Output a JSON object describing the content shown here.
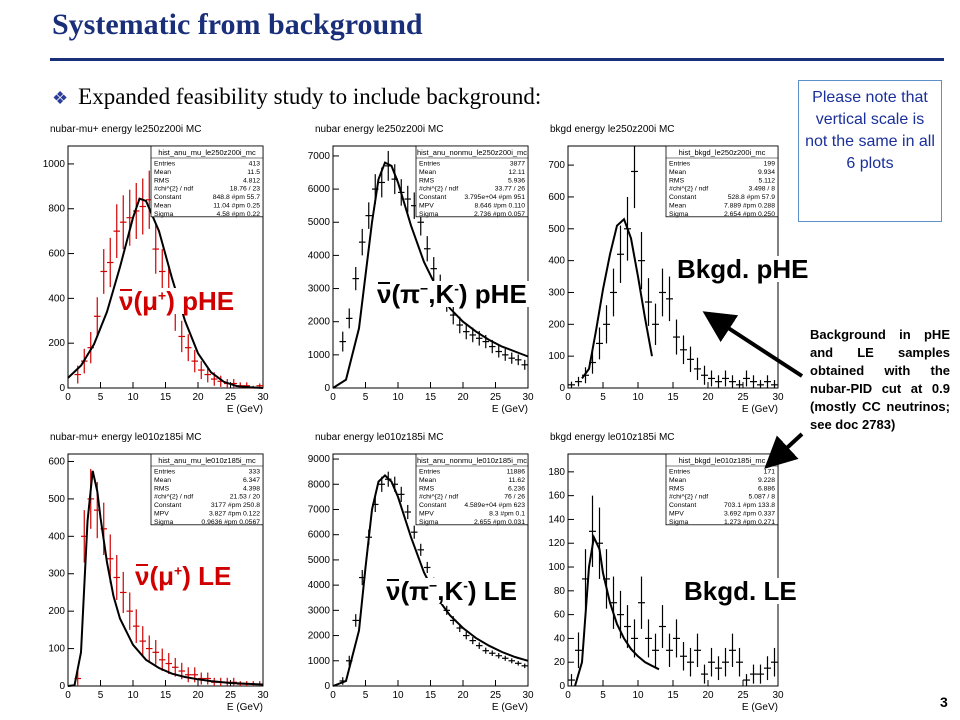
{
  "title": "Systematic from background",
  "bullet": "Expanded feasibility study to include background:",
  "note": "Please note that vertical scale is not the same in all 6 plots",
  "side_text": "Background in pHE and LE samples obtained with the nubar-PID cut at 0.9 (mostly CC neutrinos; see doc 2783)",
  "page_number": "3",
  "overlays": {
    "a": "pHE",
    "b": "pHE",
    "c": "Bkgd. pHE",
    "d": "LE",
    "e": "LE",
    "f": "Bkgd. LE"
  },
  "colors": {
    "title": "#1a2f7a",
    "highlight": "#d00000",
    "note_border": "#5d8fc8",
    "note_text": "#1a2f9a"
  },
  "chart_data": [
    {
      "type": "scatter",
      "title": "nubar-mu+ energy le250z200i MC",
      "xlabel": "E (GeV)",
      "xlim": [
        0,
        30
      ],
      "ylim": [
        0,
        1080
      ],
      "xticks": [
        0,
        5,
        10,
        15,
        20,
        25,
        30
      ],
      "yticks": [
        0,
        200,
        400,
        600,
        800,
        1000
      ],
      "point_color": "#d00000",
      "stats": {
        "name": "hist_anu_mu_le250z200i_mc",
        "rows": [
          [
            "Entries",
            "413"
          ],
          [
            "Mean",
            "11.5"
          ],
          [
            "RMS",
            "4.812"
          ],
          [
            "#chi^{2} / ndf",
            "18.76 / 23"
          ],
          [
            "Constant",
            "848.8 #pm 55.7"
          ],
          [
            "Mean",
            "11.04 #pm 0.25"
          ],
          [
            "Sigma",
            "4.58 #pm 0.22"
          ]
        ]
      },
      "x": [
        1.5,
        2.5,
        3.5,
        4.5,
        5.5,
        6.5,
        7.5,
        8.5,
        9.5,
        10.5,
        11.5,
        12.5,
        13.5,
        14.5,
        15.5,
        16.5,
        17.5,
        18.5,
        19.5,
        20.5,
        21.5,
        22.5,
        23.5,
        24.5,
        25.5,
        26.5,
        27.5,
        28.5,
        29.5
      ],
      "y": [
        60,
        120,
        180,
        320,
        520,
        560,
        700,
        740,
        760,
        790,
        810,
        840,
        620,
        520,
        440,
        340,
        230,
        180,
        120,
        80,
        60,
        40,
        30,
        20,
        20,
        10,
        10,
        0,
        10
      ],
      "errors": [
        40,
        55,
        70,
        85,
        100,
        110,
        120,
        120,
        125,
        125,
        125,
        130,
        110,
        100,
        95,
        85,
        70,
        60,
        50,
        40,
        35,
        30,
        25,
        20,
        20,
        15,
        15,
        10,
        10
      ],
      "fit_x": [
        0,
        2,
        4,
        6,
        8,
        10,
        11,
        12,
        14,
        16,
        18,
        20,
        22,
        24,
        26,
        28,
        30
      ],
      "fit_y": [
        45,
        100,
        195,
        340,
        540,
        760,
        845,
        835,
        700,
        490,
        300,
        155,
        70,
        27,
        8,
        3,
        0
      ]
    },
    {
      "type": "scatter",
      "title": "nubar energy le250z200i MC",
      "xlabel": "E (GeV)",
      "xlim": [
        0,
        30
      ],
      "ylim": [
        0,
        7300
      ],
      "xticks": [
        0,
        5,
        10,
        15,
        20,
        25,
        30
      ],
      "yticks": [
        0,
        1000,
        2000,
        3000,
        4000,
        5000,
        6000,
        7000
      ],
      "point_color": "#000000",
      "stats": {
        "name": "hist_anu_nonmu_le250z200i_mc",
        "rows": [
          [
            "Entries",
            "3877"
          ],
          [
            "Mean",
            "12.11"
          ],
          [
            "RMS",
            "5.936"
          ],
          [
            "#chi^{2} / ndf",
            "33.77 / 26"
          ],
          [
            "Constant",
            "3.795e+04 #pm 951"
          ],
          [
            "MPV",
            "8.646 #pm 0.110"
          ],
          [
            "Sigma",
            "2.736 #pm 0.057"
          ]
        ]
      },
      "x": [
        1.5,
        2.5,
        3.5,
        4.5,
        5.5,
        6.5,
        7.5,
        8.5,
        9.5,
        10.5,
        11.5,
        12.5,
        13.5,
        14.5,
        15.5,
        16.5,
        17.5,
        18.5,
        19.5,
        20.5,
        21.5,
        22.5,
        23.5,
        24.5,
        25.5,
        26.5,
        27.5,
        28.5,
        29.5
      ],
      "y": [
        1400,
        2100,
        3300,
        4400,
        5200,
        6000,
        6200,
        6700,
        6300,
        5900,
        5700,
        5500,
        5000,
        4200,
        3600,
        3100,
        2600,
        2200,
        1900,
        1700,
        1600,
        1500,
        1400,
        1250,
        1100,
        1000,
        900,
        850,
        700
      ],
      "errors": [
        300,
        300,
        350,
        400,
        400,
        450,
        450,
        450,
        450,
        400,
        400,
        400,
        400,
        380,
        350,
        320,
        300,
        280,
        250,
        230,
        220,
        220,
        200,
        200,
        180,
        180,
        170,
        160,
        150
      ],
      "fit_x": [
        0,
        2,
        4,
        6,
        7,
        8,
        9,
        10,
        12,
        14,
        16,
        18,
        20,
        22,
        24,
        26,
        28,
        30
      ],
      "fit_y": [
        0,
        250,
        1800,
        5000,
        6300,
        6800,
        6700,
        6200,
        4900,
        3800,
        3000,
        2400,
        2000,
        1700,
        1450,
        1250,
        1100,
        950
      ]
    },
    {
      "type": "scatter",
      "title": "bkgd energy le250z200i MC",
      "xlabel": "E (GeV)",
      "xlim": [
        0,
        30
      ],
      "ylim": [
        0,
        760
      ],
      "xticks": [
        0,
        5,
        10,
        15,
        20,
        25,
        30
      ],
      "yticks": [
        0,
        100,
        200,
        300,
        400,
        500,
        600,
        700
      ],
      "point_color": "#000000",
      "stats": {
        "name": "hist_bkgd_le250z200i_mc",
        "rows": [
          [
            "Entries",
            "199"
          ],
          [
            "Mean",
            "9.934"
          ],
          [
            "RMS",
            "5.112"
          ],
          [
            "#chi^{2} / ndf",
            "3.498 / 8"
          ],
          [
            "Constant",
            "528.8 #pm 57.9"
          ],
          [
            "Mean",
            "7.889 #pm 0.288"
          ],
          [
            "Sigma",
            "2.654 #pm 0.250"
          ]
        ]
      },
      "x": [
        0.5,
        1.5,
        2.5,
        3.5,
        4.5,
        5.5,
        6.5,
        7.5,
        8.5,
        9.5,
        10.5,
        11.5,
        12.5,
        13.5,
        14.5,
        15.5,
        16.5,
        17.5,
        18.5,
        19.5,
        20.5,
        21.5,
        22.5,
        23.5,
        24.5,
        25.5,
        26.5,
        27.5,
        28.5,
        29.5
      ],
      "y": [
        10,
        20,
        40,
        80,
        140,
        200,
        300,
        420,
        500,
        680,
        400,
        270,
        200,
        300,
        280,
        160,
        120,
        90,
        60,
        40,
        30,
        20,
        30,
        20,
        10,
        30,
        20,
        10,
        20,
        10
      ],
      "errors": [
        10,
        15,
        25,
        35,
        50,
        60,
        75,
        90,
        100,
        115,
        90,
        75,
        65,
        75,
        70,
        55,
        45,
        40,
        35,
        30,
        25,
        20,
        25,
        20,
        15,
        25,
        20,
        15,
        20,
        15
      ],
      "fit_x": [
        2,
        3,
        4,
        5,
        6,
        7,
        8,
        9,
        10,
        11,
        12
      ],
      "fit_y": [
        30,
        60,
        180,
        310,
        420,
        510,
        530,
        470,
        350,
        220,
        100
      ]
    },
    {
      "type": "scatter",
      "title": "nubar-mu+ energy le010z185i MC",
      "xlabel": "E (GeV)",
      "xlim": [
        0,
        30
      ],
      "ylim": [
        0,
        620
      ],
      "xticks": [
        0,
        5,
        10,
        15,
        20,
        25,
        30
      ],
      "yticks": [
        0,
        100,
        200,
        300,
        400,
        500,
        600
      ],
      "point_color": "#d00000",
      "stats": {
        "name": "hist_anu_mu_le010z185i_mc",
        "rows": [
          [
            "Entries",
            "333"
          ],
          [
            "Mean",
            "6.347"
          ],
          [
            "RMS",
            "4.398"
          ],
          [
            "#chi^{2} / ndf",
            "21.53 / 20"
          ],
          [
            "Constant",
            "3177 #pm 250.8"
          ],
          [
            "MPV",
            "3.827 #pm 0.122"
          ],
          [
            "Sigma",
            "0.9636 #pm 0.0567"
          ]
        ]
      },
      "x": [
        1.5,
        2.5,
        3.5,
        4.5,
        5.5,
        6.5,
        7.5,
        8.5,
        9.5,
        10.5,
        11.5,
        12.5,
        13.5,
        14.5,
        15.5,
        16.5,
        17.5,
        18.5,
        19.5,
        20.5,
        21.5,
        22.5,
        23.5,
        24.5,
        25.5,
        26.5,
        27.5,
        28.5,
        29.5
      ],
      "y": [
        20,
        400,
        500,
        470,
        420,
        340,
        290,
        250,
        200,
        160,
        120,
        100,
        90,
        70,
        60,
        50,
        40,
        30,
        30,
        20,
        20,
        10,
        10,
        10,
        10,
        5,
        5,
        5,
        5
      ],
      "errors": [
        20,
        70,
        80,
        75,
        70,
        65,
        60,
        55,
        50,
        45,
        40,
        35,
        33,
        30,
        28,
        25,
        22,
        20,
        20,
        16,
        16,
        12,
        12,
        12,
        12,
        8,
        8,
        8,
        8
      ],
      "fit_x": [
        0,
        1,
        2,
        3,
        3.8,
        4.5,
        5,
        6,
        7,
        8,
        10,
        12,
        14,
        16,
        18,
        20,
        22,
        25,
        30
      ],
      "fit_y": [
        0,
        2,
        90,
        440,
        575,
        520,
        450,
        330,
        240,
        180,
        110,
        70,
        48,
        33,
        24,
        18,
        13,
        8,
        4
      ]
    },
    {
      "type": "scatter",
      "title": "nubar energy le010z185i MC",
      "xlabel": "E (GeV)",
      "xlim": [
        0,
        30
      ],
      "ylim": [
        0,
        9200
      ],
      "xticks": [
        0,
        5,
        10,
        15,
        20,
        25,
        30
      ],
      "yticks": [
        0,
        1000,
        2000,
        3000,
        4000,
        5000,
        6000,
        7000,
        8000,
        9000
      ],
      "point_color": "#000000",
      "stats": {
        "name": "hist_anu_nonmu_le010z185i_mc",
        "rows": [
          [
            "Entries",
            "11886"
          ],
          [
            "Mean",
            "11.62"
          ],
          [
            "RMS",
            "6.236"
          ],
          [
            "#chi^{2} / ndf",
            "76 / 26"
          ],
          [
            "Constant",
            "4.589e+04 #pm 623"
          ],
          [
            "MPV",
            "8.3 #pm 0.1"
          ],
          [
            "Sigma",
            "2.655 #pm 0.031"
          ]
        ]
      },
      "x": [
        1.5,
        2.5,
        3.5,
        4.5,
        5.5,
        6.5,
        7.5,
        8.5,
        9.5,
        10.5,
        11.5,
        12.5,
        13.5,
        14.5,
        15.5,
        16.5,
        17.5,
        18.5,
        19.5,
        20.5,
        21.5,
        22.5,
        23.5,
        24.5,
        25.5,
        26.5,
        27.5,
        28.5,
        29.5
      ],
      "y": [
        200,
        1000,
        2600,
        4300,
        5900,
        7200,
        8000,
        8200,
        8000,
        7600,
        6900,
        6100,
        5400,
        4700,
        4100,
        3500,
        3000,
        2600,
        2300,
        2000,
        1800,
        1600,
        1400,
        1300,
        1200,
        1100,
        1000,
        900,
        800
      ],
      "errors": [
        150,
        200,
        250,
        300,
        300,
        300,
        300,
        300,
        300,
        300,
        280,
        260,
        240,
        220,
        200,
        190,
        180,
        170,
        160,
        150,
        140,
        130,
        120,
        110,
        110,
        100,
        100,
        90,
        90
      ],
      "fit_x": [
        0,
        2,
        4,
        5,
        6,
        7,
        8,
        9,
        10,
        12,
        14,
        16,
        18,
        20,
        22,
        24,
        26,
        28,
        30
      ],
      "fit_y": [
        0,
        200,
        2200,
        4700,
        7000,
        8100,
        8350,
        8100,
        7500,
        5900,
        4500,
        3500,
        2800,
        2300,
        1900,
        1600,
        1350,
        1150,
        1000
      ]
    },
    {
      "type": "scatter",
      "title": "bkgd energy le010z185i MC",
      "xlabel": "E (GeV)",
      "xlim": [
        0,
        30
      ],
      "ylim": [
        0,
        195
      ],
      "xticks": [
        0,
        5,
        10,
        15,
        20,
        25,
        30
      ],
      "yticks": [
        0,
        20,
        40,
        60,
        80,
        100,
        120,
        140,
        160,
        180
      ],
      "point_color": "#000000",
      "stats": {
        "name": "hist_bkgd_le010z185i_mc",
        "rows": [
          [
            "Entries",
            "171"
          ],
          [
            "Mean",
            "9.228"
          ],
          [
            "RMS",
            "6.886"
          ],
          [
            "#chi^{2} / ndf",
            "5.087 / 8"
          ],
          [
            "Constant",
            "703.1 #pm 133.8"
          ],
          [
            "MPV",
            "3.692 #pm 0.337"
          ],
          [
            "Sigma",
            "1.273 #pm 0.271"
          ]
        ]
      },
      "x": [
        0.5,
        1.5,
        2.5,
        3.5,
        4.5,
        5.5,
        6.5,
        7.5,
        8.5,
        9.5,
        10.5,
        11.5,
        12.5,
        13.5,
        14.5,
        15.5,
        16.5,
        17.5,
        18.5,
        19.5,
        20.5,
        21.5,
        22.5,
        23.5,
        24.5,
        25.5,
        26.5,
        27.5,
        28.5,
        29.5
      ],
      "y": [
        5,
        30,
        90,
        130,
        120,
        90,
        70,
        60,
        50,
        40,
        70,
        40,
        30,
        50,
        30,
        40,
        25,
        20,
        30,
        10,
        20,
        15,
        20,
        30,
        20,
        5,
        10,
        10,
        15,
        20
      ],
      "errors": [
        5,
        15,
        25,
        30,
        30,
        25,
        22,
        20,
        18,
        16,
        22,
        16,
        14,
        18,
        14,
        16,
        12,
        12,
        14,
        8,
        12,
        10,
        12,
        14,
        12,
        5,
        8,
        8,
        10,
        12
      ],
      "fit_x": [
        1,
        2,
        3,
        3.7,
        4.5,
        5,
        6,
        7,
        8,
        9,
        10,
        11,
        12,
        13
      ],
      "fit_y": [
        0,
        20,
        100,
        125,
        115,
        95,
        70,
        52,
        40,
        31,
        25,
        20,
        17,
        14
      ]
    }
  ]
}
